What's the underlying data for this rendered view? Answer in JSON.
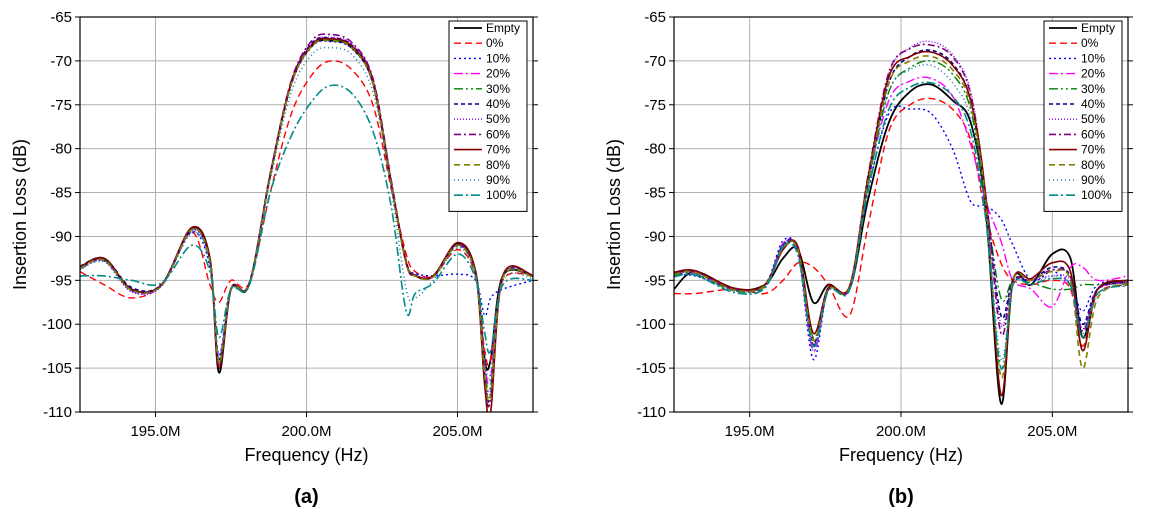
{
  "series_styles": [
    {
      "name": "Empty",
      "color": "#000000",
      "dash": "",
      "width": 1.8
    },
    {
      "name": "0%",
      "color": "#ff0000",
      "dash": "7,4",
      "width": 1.4
    },
    {
      "name": "10%",
      "color": "#0000ff",
      "dash": "2,3",
      "width": 1.4
    },
    {
      "name": "20%",
      "color": "#ff00ff",
      "dash": "9,3,2,3",
      "width": 1.4
    },
    {
      "name": "30%",
      "color": "#008000",
      "dash": "9,3,2,3,2,3",
      "width": 1.4
    },
    {
      "name": "40%",
      "color": "#000080",
      "dash": "4,3",
      "width": 1.6
    },
    {
      "name": "50%",
      "color": "#8000ff",
      "dash": "1,2",
      "width": 1.4
    },
    {
      "name": "60%",
      "color": "#800080",
      "dash": "7,3,2,3",
      "width": 1.6
    },
    {
      "name": "70%",
      "color": "#800000",
      "dash": "",
      "width": 1.6
    },
    {
      "name": "80%",
      "color": "#808000",
      "dash": "6,4",
      "width": 1.6
    },
    {
      "name": "90%",
      "color": "#1f77b4",
      "dash": "1,3",
      "width": 1.6
    },
    {
      "name": "100%",
      "color": "#008b8b",
      "dash": "9,3,2,3",
      "width": 1.6
    }
  ],
  "chart_data": [
    {
      "type": "line",
      "panel_label": "(a)",
      "xlabel": "Frequency (Hz)",
      "ylabel": "Insertion Loss (dB)",
      "xlim": [
        192.5,
        207.5
      ],
      "ylim": [
        -110,
        -65
      ],
      "xticks": [
        195,
        200,
        205
      ],
      "xtick_labels": [
        "195.0M",
        "200.0M",
        "205.0M"
      ],
      "yticks": [
        -65,
        -70,
        -75,
        -80,
        -85,
        -90,
        -95,
        -100,
        -105,
        -110
      ],
      "ytick_labels": [
        "-65",
        "-70",
        "-75",
        "-80",
        "-85",
        "-90",
        "-95",
        "-100",
        "-105",
        "-110"
      ],
      "grid": true,
      "legend": "top-right",
      "x": [
        192.5,
        193.3,
        194.2,
        195.2,
        196.2,
        196.8,
        197.1,
        197.5,
        198.1,
        198.8,
        199.5,
        200.2,
        200.8,
        201.5,
        202.2,
        202.8,
        203.3,
        203.6,
        204.2,
        205.0,
        205.6,
        205.9,
        206.1,
        206.5,
        207.5
      ],
      "series": [
        {
          "name": "Empty",
          "values": [
            -93.5,
            -92.5,
            -96.0,
            -95.5,
            -89.0,
            -92.5,
            -105.5,
            -96.0,
            -95.5,
            -83.0,
            -72.5,
            -68.2,
            -67.7,
            -68.5,
            -72.5,
            -84.0,
            -93.0,
            -94.5,
            -94.5,
            -90.8,
            -94.0,
            -104.0,
            -104.0,
            -94.5,
            -94.5
          ]
        },
        {
          "name": "0%",
          "values": [
            -94.0,
            -95.5,
            -97.0,
            -95.5,
            -89.5,
            -95.5,
            -97.5,
            -95.0,
            -95.3,
            -85.0,
            -76.0,
            -71.5,
            -70.0,
            -71.0,
            -75.0,
            -84.5,
            -92.0,
            -94.0,
            -94.5,
            -91.5,
            -94.5,
            -103.0,
            -104.0,
            -95.0,
            -94.5
          ]
        },
        {
          "name": "10%",
          "values": [
            -93.5,
            -92.8,
            -96.0,
            -95.5,
            -89.5,
            -93.5,
            -103.5,
            -96.0,
            -95.5,
            -83.2,
            -72.7,
            -68.3,
            -67.8,
            -68.6,
            -72.6,
            -84.0,
            -93.0,
            -94.2,
            -94.5,
            -94.3,
            -95.0,
            -99.0,
            -97.0,
            -96.0,
            -95.0
          ]
        },
        {
          "name": "20%",
          "values": [
            -93.6,
            -92.6,
            -96.2,
            -95.6,
            -89.0,
            -92.8,
            -104.8,
            -96.0,
            -95.5,
            -83.0,
            -72.4,
            -68.0,
            -67.5,
            -68.3,
            -72.3,
            -83.8,
            -93.0,
            -94.5,
            -94.6,
            -91.0,
            -94.3,
            -104.5,
            -106.0,
            -94.6,
            -94.5
          ]
        },
        {
          "name": "30%",
          "values": [
            -93.7,
            -92.7,
            -96.1,
            -95.6,
            -89.3,
            -92.9,
            -104.5,
            -96.1,
            -95.6,
            -83.1,
            -72.5,
            -68.1,
            -67.6,
            -68.4,
            -72.4,
            -83.9,
            -93.0,
            -94.5,
            -94.6,
            -91.1,
            -94.4,
            -105.0,
            -107.0,
            -94.7,
            -94.6
          ]
        },
        {
          "name": "40%",
          "values": [
            -93.4,
            -92.5,
            -95.8,
            -95.5,
            -89.2,
            -92.6,
            -104.0,
            -95.9,
            -95.4,
            -82.8,
            -72.3,
            -67.9,
            -67.4,
            -68.2,
            -72.2,
            -83.7,
            -92.8,
            -94.4,
            -94.5,
            -90.9,
            -94.2,
            -106.0,
            -108.0,
            -94.6,
            -94.5
          ]
        },
        {
          "name": "50%",
          "values": [
            -93.8,
            -92.8,
            -96.3,
            -95.7,
            -89.4,
            -93.0,
            -104.2,
            -96.0,
            -95.5,
            -83.0,
            -72.4,
            -68.0,
            -67.3,
            -68.1,
            -72.1,
            -83.6,
            -92.9,
            -94.4,
            -94.5,
            -91.0,
            -94.3,
            -105.5,
            -107.5,
            -94.6,
            -94.5
          ]
        },
        {
          "name": "60%",
          "values": [
            -93.5,
            -92.6,
            -96.0,
            -95.5,
            -89.1,
            -92.7,
            -104.6,
            -95.9,
            -95.4,
            -82.9,
            -72.2,
            -67.6,
            -67.0,
            -67.9,
            -72.0,
            -83.5,
            -92.9,
            -94.4,
            -94.5,
            -90.8,
            -94.2,
            -106.5,
            -108.5,
            -94.5,
            -94.4
          ]
        },
        {
          "name": "70%",
          "values": [
            -93.5,
            -92.5,
            -96.0,
            -95.5,
            -89.0,
            -92.6,
            -105.0,
            -96.0,
            -95.5,
            -83.0,
            -72.5,
            -68.1,
            -67.5,
            -68.3,
            -72.4,
            -83.9,
            -93.0,
            -94.5,
            -94.5,
            -90.7,
            -94.1,
            -107.0,
            -110.0,
            -94.5,
            -94.5
          ]
        },
        {
          "name": "80%",
          "values": [
            -93.6,
            -92.7,
            -96.1,
            -95.6,
            -89.2,
            -92.8,
            -104.4,
            -96.0,
            -95.5,
            -83.1,
            -72.6,
            -68.2,
            -67.7,
            -68.5,
            -72.5,
            -84.0,
            -93.1,
            -94.5,
            -94.6,
            -91.0,
            -94.4,
            -105.8,
            -108.0,
            -94.7,
            -94.6
          ]
        },
        {
          "name": "90%",
          "values": [
            -93.7,
            -92.9,
            -96.2,
            -95.6,
            -89.6,
            -93.2,
            -103.8,
            -96.1,
            -95.6,
            -83.5,
            -73.5,
            -69.2,
            -68.5,
            -69.3,
            -73.5,
            -84.5,
            -96.0,
            -97.0,
            -95.0,
            -91.3,
            -94.5,
            -104.0,
            -105.5,
            -95.0,
            -94.8
          ]
        },
        {
          "name": "100%",
          "values": [
            -94.5,
            -94.5,
            -95.0,
            -95.3,
            -91.0,
            -94.0,
            -101.5,
            -96.0,
            -95.6,
            -85.0,
            -78.5,
            -74.5,
            -72.8,
            -73.7,
            -78.0,
            -86.5,
            -98.5,
            -96.5,
            -95.3,
            -92.0,
            -94.8,
            -101.0,
            -103.0,
            -95.5,
            -95.0
          ]
        }
      ]
    },
    {
      "type": "line",
      "panel_label": "(b)",
      "xlabel": "Frequency (Hz)",
      "ylabel": "Insertion Loss (dB)",
      "xlim": [
        192.5,
        207.5
      ],
      "ylim": [
        -110,
        -65
      ],
      "xticks": [
        195,
        200,
        205
      ],
      "xtick_labels": [
        "195.0M",
        "200.0M",
        "205.0M"
      ],
      "yticks": [
        -65,
        -70,
        -75,
        -80,
        -85,
        -90,
        -95,
        -100,
        -105,
        -110
      ],
      "ytick_labels": [
        "-65",
        "-70",
        "-75",
        "-80",
        "-85",
        "-90",
        "-95",
        "-100",
        "-105",
        "-110"
      ],
      "grid": true,
      "legend": "top-right",
      "x": [
        192.5,
        193.2,
        194.5,
        195.5,
        196.1,
        196.6,
        197.1,
        197.6,
        198.3,
        198.9,
        199.6,
        200.3,
        201.0,
        201.7,
        202.3,
        202.8,
        203.3,
        203.7,
        204.3,
        205.0,
        205.6,
        206.0,
        206.5,
        207.5
      ],
      "series": [
        {
          "name": "Empty",
          "values": [
            -96.0,
            -94.0,
            -96.0,
            -95.5,
            -92.5,
            -91.5,
            -97.5,
            -95.5,
            -96.0,
            -86.0,
            -77.0,
            -73.5,
            -72.7,
            -74.5,
            -77.0,
            -87.0,
            -109.0,
            -95.0,
            -95.5,
            -92.0,
            -92.5,
            -101.5,
            -96.0,
            -95.0
          ]
        },
        {
          "name": "0%",
          "values": [
            -96.5,
            -96.5,
            -96.0,
            -96.5,
            -95.0,
            -93.0,
            -93.5,
            -95.5,
            -99.0,
            -89.0,
            -78.0,
            -75.0,
            -74.3,
            -75.5,
            -79.0,
            -87.5,
            -93.0,
            -95.0,
            -95.5,
            -95.0,
            -96.0,
            -102.5,
            -96.5,
            -95.5
          ]
        },
        {
          "name": "10%",
          "values": [
            -94.5,
            -94.5,
            -96.0,
            -95.5,
            -90.5,
            -92.0,
            -104.0,
            -96.0,
            -96.0,
            -85.0,
            -76.0,
            -75.5,
            -76.0,
            -80.0,
            -86.0,
            -86.5,
            -88.0,
            -91.0,
            -95.0,
            -94.0,
            -95.5,
            -98.5,
            -95.5,
            -95.0
          ]
        },
        {
          "name": "20%",
          "values": [
            -94.3,
            -94.2,
            -96.0,
            -95.6,
            -90.8,
            -91.8,
            -103.0,
            -96.0,
            -96.0,
            -84.0,
            -74.5,
            -72.3,
            -72.0,
            -74.0,
            -79.5,
            -86.0,
            -90.5,
            -95.0,
            -96.0,
            -98.0,
            -93.5,
            -93.5,
            -95.0,
            -94.5
          ]
        },
        {
          "name": "30%",
          "values": [
            -94.4,
            -94.3,
            -96.2,
            -95.7,
            -91.0,
            -92.0,
            -101.5,
            -96.0,
            -96.0,
            -84.2,
            -73.5,
            -70.8,
            -70.0,
            -71.5,
            -75.5,
            -86.0,
            -97.0,
            -95.0,
            -95.3,
            -96.0,
            -96.0,
            -95.5,
            -95.5,
            -95.3
          ]
        },
        {
          "name": "40%",
          "values": [
            -94.2,
            -94.0,
            -96.0,
            -95.5,
            -91.0,
            -91.5,
            -102.0,
            -96.0,
            -95.8,
            -84.0,
            -72.5,
            -69.5,
            -68.8,
            -70.3,
            -74.5,
            -85.5,
            -99.0,
            -95.0,
            -95.0,
            -93.5,
            -94.5,
            -100.0,
            -96.0,
            -95.2
          ]
        },
        {
          "name": "50%",
          "values": [
            -94.3,
            -94.1,
            -96.1,
            -95.6,
            -90.9,
            -91.7,
            -102.5,
            -96.0,
            -95.9,
            -83.5,
            -71.5,
            -68.5,
            -67.8,
            -69.3,
            -73.5,
            -85.0,
            -100.0,
            -95.0,
            -95.0,
            -94.5,
            -95.0,
            -100.5,
            -96.0,
            -95.3
          ]
        },
        {
          "name": "60%",
          "values": [
            -94.2,
            -94.0,
            -96.0,
            -95.5,
            -91.2,
            -91.6,
            -102.3,
            -96.0,
            -95.8,
            -83.3,
            -71.3,
            -68.6,
            -68.2,
            -69.5,
            -73.8,
            -85.2,
            -101.0,
            -95.0,
            -95.0,
            -93.8,
            -94.6,
            -100.8,
            -96.0,
            -95.2
          ]
        },
        {
          "name": "70%",
          "values": [
            -94.1,
            -93.9,
            -95.9,
            -95.5,
            -91.5,
            -91.2,
            -101.0,
            -95.8,
            -95.7,
            -83.5,
            -71.8,
            -69.5,
            -69.0,
            -70.5,
            -74.5,
            -85.5,
            -108.0,
            -95.0,
            -94.8,
            -93.0,
            -94.0,
            -103.0,
            -96.0,
            -95.0
          ]
        },
        {
          "name": "80%",
          "values": [
            -94.3,
            -94.1,
            -96.1,
            -95.6,
            -91.3,
            -91.6,
            -101.8,
            -96.0,
            -95.9,
            -84.0,
            -72.5,
            -70.0,
            -69.5,
            -71.0,
            -75.0,
            -86.0,
            -106.0,
            -95.0,
            -95.0,
            -94.0,
            -95.0,
            -105.0,
            -97.0,
            -95.3
          ]
        },
        {
          "name": "90%",
          "values": [
            -94.5,
            -94.3,
            -96.3,
            -95.8,
            -91.0,
            -92.0,
            -103.0,
            -96.1,
            -96.0,
            -84.5,
            -73.5,
            -71.0,
            -70.5,
            -72.5,
            -76.5,
            -87.0,
            -104.0,
            -95.5,
            -95.5,
            -94.5,
            -95.5,
            -101.0,
            -96.5,
            -95.5
          ]
        },
        {
          "name": "100%",
          "values": [
            -94.6,
            -94.4,
            -96.4,
            -95.9,
            -91.2,
            -92.2,
            -102.5,
            -96.2,
            -96.1,
            -85.0,
            -75.5,
            -73.0,
            -72.5,
            -74.0,
            -78.0,
            -88.0,
            -105.0,
            -95.5,
            -95.5,
            -94.8,
            -95.6,
            -101.5,
            -96.5,
            -95.6
          ]
        }
      ]
    }
  ]
}
